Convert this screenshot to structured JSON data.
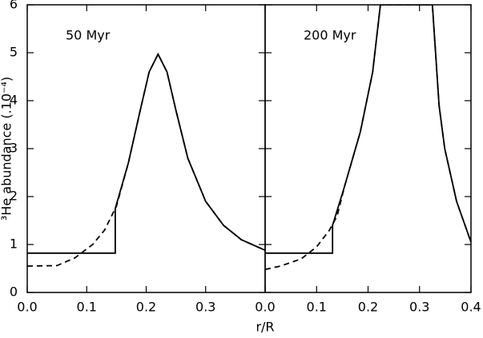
{
  "chart_data": [
    {
      "type": "line",
      "annotation": "50 Myr",
      "ylabel": "³He abundance (.10⁻⁴)",
      "xlabel": "r/R",
      "xlim": [
        0,
        0.4
      ],
      "ylim": [
        0,
        6
      ],
      "xticks": [
        {
          "value": 0,
          "label": "0.0"
        },
        0.1,
        0.2,
        0.3
      ],
      "yticks": [
        0,
        1,
        2,
        3,
        4,
        5,
        6
      ],
      "series": [
        {
          "style": "solid",
          "color": "#000000",
          "x": [
            0,
            0.148,
            0.148,
            0.17,
            0.19,
            0.205,
            0.22,
            0.235,
            0.25,
            0.27,
            0.3,
            0.33,
            0.36,
            0.4
          ],
          "values": [
            0.82,
            0.82,
            1.75,
            2.7,
            3.8,
            4.6,
            4.97,
            4.6,
            3.8,
            2.8,
            1.9,
            1.4,
            1.1,
            0.88
          ]
        },
        {
          "style": "dashed",
          "color": "#000000",
          "x": [
            0,
            0.05,
            0.08,
            0.11,
            0.13,
            0.15,
            0.17,
            0.19,
            0.205,
            0.22,
            0.235,
            0.25,
            0.27,
            0.3,
            0.33,
            0.36,
            0.4
          ],
          "values": [
            0.55,
            0.56,
            0.72,
            1.0,
            1.3,
            1.8,
            2.7,
            3.8,
            4.6,
            4.97,
            4.6,
            3.8,
            2.8,
            1.9,
            1.4,
            1.1,
            0.88
          ]
        }
      ]
    },
    {
      "type": "line",
      "annotation": "200 Myr",
      "xlim": [
        0,
        0.4
      ],
      "ylim": [
        0,
        6
      ],
      "xticks": [
        {
          "value": 0,
          "label": "0.0"
        },
        0.1,
        0.2,
        0.3,
        0.4
      ],
      "yticks": [
        0,
        1,
        2,
        3,
        4,
        5,
        6
      ],
      "series": [
        {
          "style": "solid",
          "color": "#000000",
          "x": [
            0,
            0.131,
            0.131,
            0.154,
            0.185,
            0.209,
            0.224,
            0.325,
            0.338,
            0.349,
            0.372,
            0.4
          ],
          "values": [
            0.82,
            0.82,
            1.4,
            2.2,
            3.35,
            4.6,
            6,
            6,
            3.9,
            3.0,
            1.9,
            1.05
          ]
        },
        {
          "style": "dashed",
          "color": "#000000",
          "x": [
            0,
            0.03,
            0.07,
            0.1,
            0.125,
            0.14,
            0.154,
            0.185,
            0.209,
            0.224,
            0.325,
            0.338,
            0.349,
            0.372,
            0.4
          ],
          "values": [
            0.48,
            0.55,
            0.7,
            0.95,
            1.3,
            1.6,
            2.2,
            3.35,
            4.6,
            6,
            6,
            3.9,
            3.0,
            1.9,
            1.05
          ]
        }
      ]
    }
  ]
}
